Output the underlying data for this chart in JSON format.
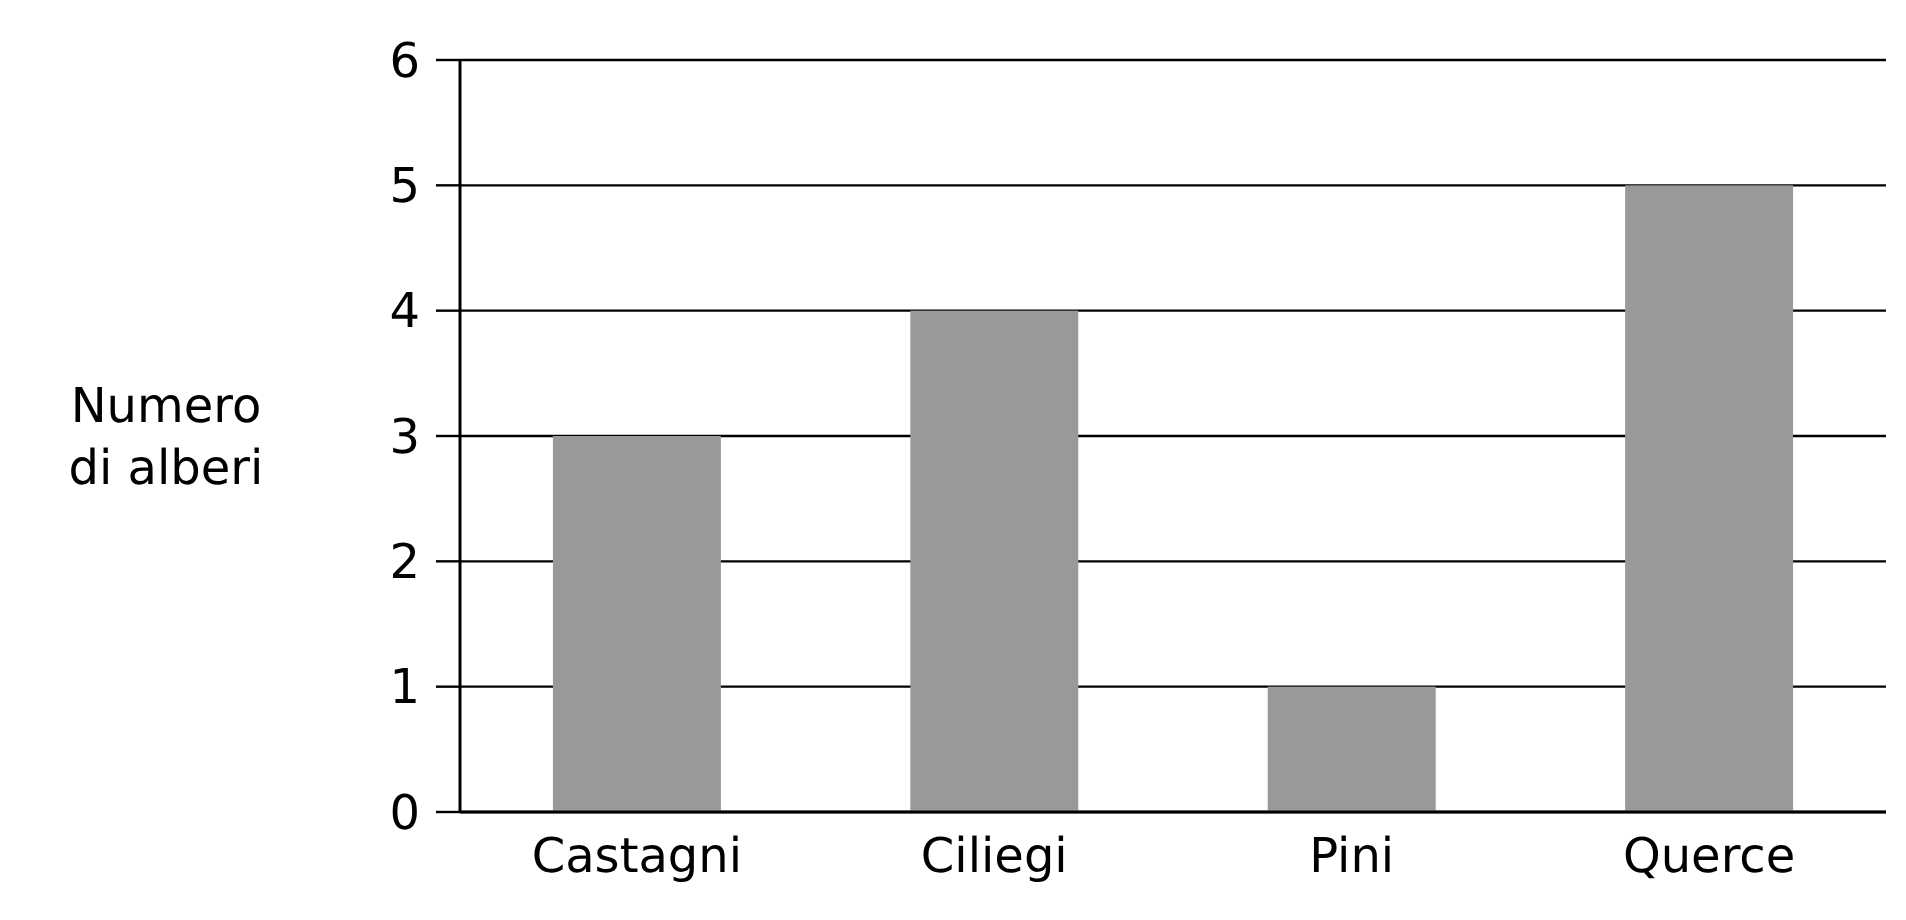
{
  "chart_data": {
    "type": "bar",
    "ylabel": "Numero di alberi",
    "categories": [
      "Castagni",
      "Ciliegi",
      "Pini",
      "Querce"
    ],
    "values": [
      3,
      4,
      1,
      5
    ],
    "color": "#999999",
    "ylim": [
      0,
      6
    ],
    "yticks": [
      0,
      1,
      2,
      3,
      4,
      5,
      6
    ],
    "grid": "y"
  }
}
